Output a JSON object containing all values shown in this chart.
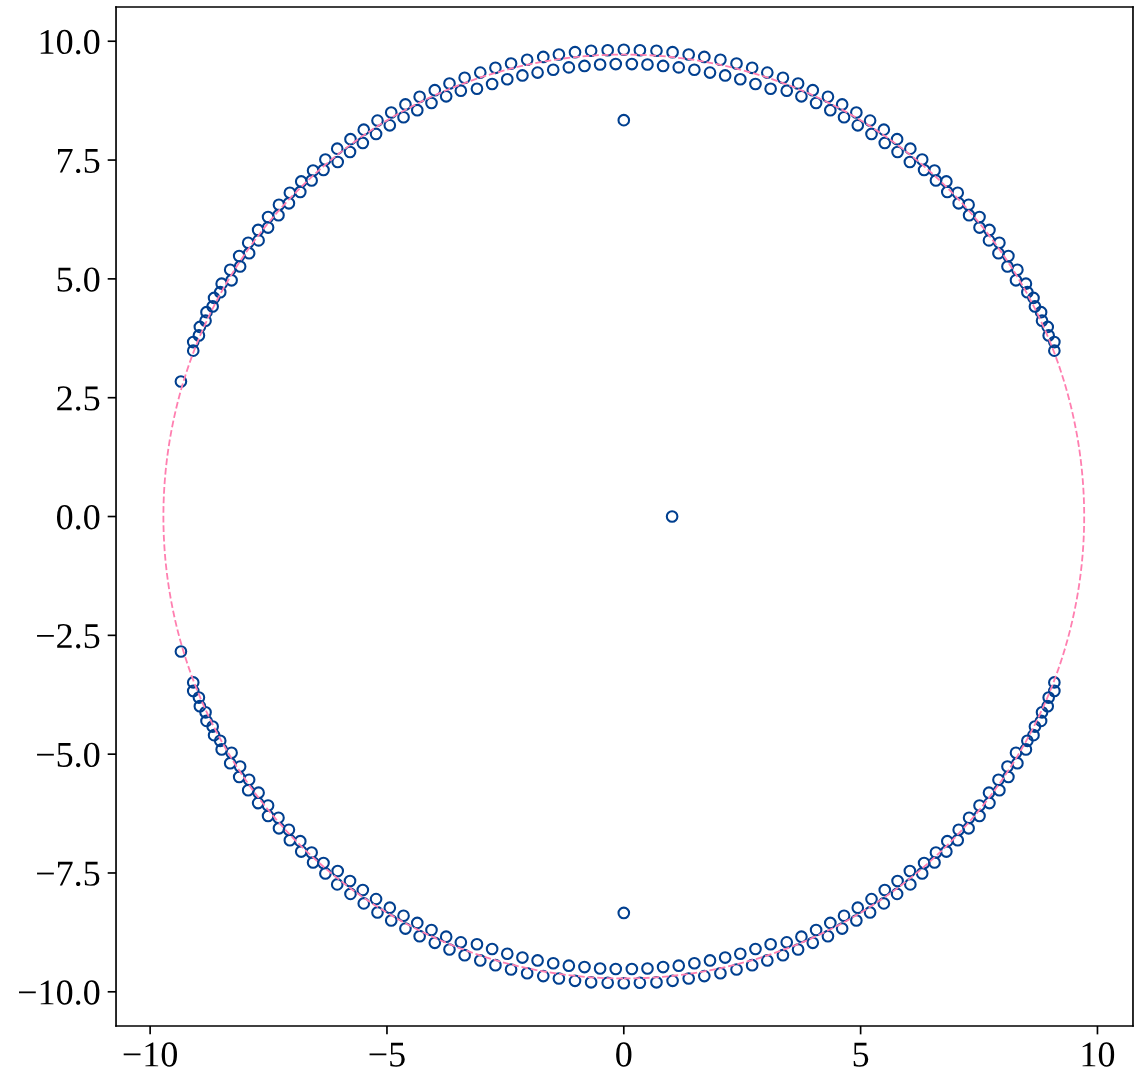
{
  "chart_data": {
    "type": "scatter",
    "series": [
      {
        "color": "#003f8f",
        "marker": "circle",
        "x": [
          9.09,
          9.09,
          8.97,
          8.95,
          8.83,
          8.81,
          8.68,
          8.65,
          8.52,
          8.49,
          8.28,
          8.31,
          8.1,
          8.12,
          7.91,
          7.93,
          7.71,
          7.72,
          7.51,
          7.51,
          7.29,
          7.28,
          7.07,
          7.05,
          6.83,
          6.81,
          6.59,
          6.56,
          6.34,
          6.3,
          6.04,
          6.05,
          5.78,
          5.77,
          5.51,
          5.49,
          5.23,
          5.2,
          4.94,
          4.91,
          4.65,
          4.61,
          4.36,
          4.31,
          4.06,
          3.99,
          3.75,
          3.68,
          3.44,
          3.36,
          3.1,
          3.03,
          2.78,
          2.71,
          2.46,
          2.38,
          2.14,
          2.04,
          1.82,
          1.7,
          1.49,
          1.37,
          1.16,
          1.03,
          0.83,
          0.69,
          0.5,
          0.34,
          0.17,
          0,
          -0.17,
          -0.34,
          -0.5,
          -0.69,
          -0.83,
          -1.03,
          -1.16,
          -1.37,
          -1.49,
          -1.7,
          -1.82,
          -2.04,
          -2.14,
          -2.38,
          -2.46,
          -2.71,
          -2.78,
          -3.03,
          -3.1,
          -3.36,
          -3.44,
          -3.68,
          -3.75,
          -3.99,
          -4.06,
          -4.31,
          -4.36,
          -4.61,
          -4.65,
          -4.91,
          -4.94,
          -5.2,
          -5.23,
          -5.49,
          -5.51,
          -5.77,
          -5.78,
          -6.05,
          -6.04,
          -6.3,
          -6.34,
          -6.56,
          -6.59,
          -6.81,
          -6.83,
          -7.05,
          -7.07,
          -7.28,
          -7.29,
          -7.51,
          -7.51,
          -7.72,
          -7.71,
          -7.93,
          -7.91,
          -8.12,
          -8.1,
          -8.31,
          -8.28,
          -8.49,
          -8.52,
          -8.65,
          -8.68,
          -8.81,
          -8.83,
          -8.95,
          -8.97,
          -9.09,
          -9.09,
          9.09,
          9.09,
          8.97,
          8.95,
          8.83,
          8.81,
          8.68,
          8.65,
          8.52,
          8.49,
          8.28,
          8.31,
          8.1,
          8.12,
          7.91,
          7.93,
          7.71,
          7.72,
          7.51,
          7.51,
          7.29,
          7.28,
          7.07,
          7.05,
          6.83,
          6.81,
          6.59,
          6.56,
          6.34,
          6.3,
          6.04,
          6.05,
          5.78,
          5.77,
          5.51,
          5.49,
          5.23,
          5.2,
          4.94,
          4.91,
          4.65,
          4.61,
          4.36,
          4.31,
          4.06,
          3.99,
          3.75,
          3.68,
          3.44,
          3.36,
          3.1,
          3.03,
          2.78,
          2.71,
          2.46,
          2.38,
          2.14,
          2.04,
          1.82,
          1.7,
          1.49,
          1.37,
          1.16,
          1.03,
          0.83,
          0.69,
          0.5,
          0.34,
          0.17,
          0,
          -0.17,
          -0.34,
          -0.5,
          -0.69,
          -0.83,
          -1.03,
          -1.16,
          -1.37,
          -1.49,
          -1.7,
          -1.82,
          -2.04,
          -2.14,
          -2.38,
          -2.46,
          -2.71,
          -2.78,
          -3.03,
          -3.1,
          -3.36,
          -3.44,
          -3.68,
          -3.75,
          -3.99,
          -4.06,
          -4.31,
          -4.36,
          -4.61,
          -4.65,
          -4.91,
          -4.94,
          -5.2,
          -5.23,
          -5.49,
          -5.51,
          -5.77,
          -5.78,
          -6.05,
          -6.04,
          -6.3,
          -6.34,
          -6.56,
          -6.59,
          -6.81,
          -6.83,
          -7.05,
          -7.07,
          -7.28,
          -7.29,
          -7.51,
          -7.51,
          -7.72,
          -7.71,
          -7.93,
          -7.91,
          -8.12,
          -8.1,
          -8.31,
          -8.28,
          -8.49,
          -8.52,
          -8.65,
          -8.68,
          -8.81,
          -8.83,
          -8.95,
          -8.97,
          -9.09,
          -9.09,
          0,
          1.02,
          0,
          -9.35,
          -9.35
        ],
        "values": [
          3.49,
          3.67,
          3.81,
          3.99,
          4.12,
          4.3,
          4.42,
          4.6,
          4.72,
          4.9,
          4.97,
          5.19,
          5.26,
          5.48,
          5.54,
          5.76,
          5.81,
          6.03,
          6.08,
          6.3,
          6.34,
          6.56,
          6.59,
          6.81,
          6.83,
          7.05,
          7.07,
          7.28,
          7.29,
          7.51,
          7.46,
          7.74,
          7.67,
          7.94,
          7.86,
          8.14,
          8.05,
          8.33,
          8.23,
          8.5,
          8.4,
          8.67,
          8.55,
          8.83,
          8.7,
          8.97,
          8.84,
          9.11,
          8.96,
          9.23,
          9.0,
          9.34,
          9.1,
          9.44,
          9.2,
          9.53,
          9.28,
          9.61,
          9.34,
          9.67,
          9.4,
          9.72,
          9.45,
          9.77,
          9.48,
          9.8,
          9.51,
          9.81,
          9.52,
          9.82,
          9.52,
          9.81,
          9.51,
          9.8,
          9.48,
          9.77,
          9.45,
          9.72,
          9.4,
          9.67,
          9.34,
          9.61,
          9.28,
          9.53,
          9.2,
          9.44,
          9.1,
          9.34,
          9.0,
          9.23,
          8.96,
          9.11,
          8.84,
          8.97,
          8.7,
          8.83,
          8.55,
          8.67,
          8.4,
          8.5,
          8.23,
          8.33,
          8.05,
          8.14,
          7.86,
          7.94,
          7.67,
          7.74,
          7.46,
          7.51,
          7.29,
          7.28,
          7.07,
          7.05,
          6.83,
          6.81,
          6.59,
          6.56,
          6.34,
          6.3,
          6.08,
          6.03,
          5.81,
          5.76,
          5.54,
          5.48,
          5.26,
          5.19,
          4.97,
          4.9,
          4.72,
          4.6,
          4.42,
          4.3,
          4.12,
          3.99,
          3.81,
          3.67,
          3.49,
          -3.49,
          -3.67,
          -3.81,
          -3.99,
          -4.12,
          -4.3,
          -4.42,
          -4.6,
          -4.72,
          -4.9,
          -4.97,
          -5.19,
          -5.26,
          -5.48,
          -5.54,
          -5.76,
          -5.81,
          -6.03,
          -6.08,
          -6.3,
          -6.34,
          -6.56,
          -6.59,
          -6.81,
          -6.83,
          -7.05,
          -7.07,
          -7.28,
          -7.29,
          -7.51,
          -7.46,
          -7.74,
          -7.67,
          -7.94,
          -7.86,
          -8.14,
          -8.05,
          -8.33,
          -8.23,
          -8.5,
          -8.4,
          -8.67,
          -8.55,
          -8.83,
          -8.7,
          -8.97,
          -8.84,
          -9.11,
          -8.96,
          -9.23,
          -9.0,
          -9.34,
          -9.1,
          -9.44,
          -9.2,
          -9.53,
          -9.28,
          -9.61,
          -9.34,
          -9.67,
          -9.4,
          -9.72,
          -9.45,
          -9.77,
          -9.48,
          -9.8,
          -9.51,
          -9.81,
          -9.52,
          -9.82,
          -9.52,
          -9.81,
          -9.51,
          -9.8,
          -9.48,
          -9.77,
          -9.45,
          -9.72,
          -9.4,
          -9.67,
          -9.34,
          -9.61,
          -9.28,
          -9.53,
          -9.2,
          -9.44,
          -9.1,
          -9.34,
          -9.0,
          -9.23,
          -8.96,
          -9.11,
          -8.84,
          -8.97,
          -8.7,
          -8.83,
          -8.55,
          -8.67,
          -8.4,
          -8.5,
          -8.23,
          -8.33,
          -8.05,
          -8.14,
          -7.86,
          -7.94,
          -7.67,
          -7.74,
          -7.46,
          -7.51,
          -7.29,
          -7.28,
          -7.07,
          -7.05,
          -6.83,
          -6.81,
          -6.59,
          -6.56,
          -6.34,
          -6.3,
          -6.08,
          -6.03,
          -5.81,
          -5.76,
          -5.54,
          -5.48,
          -5.26,
          -5.19,
          -4.97,
          -4.9,
          -4.72,
          -4.6,
          -4.42,
          -4.3,
          -4.12,
          -3.99,
          -3.81,
          -3.67,
          -3.49,
          8.34,
          0,
          -8.34,
          2.84,
          -2.84
        ]
      }
    ],
    "xlim": [
      -10.72,
      10.75
    ],
    "ylim": [
      -10.72,
      10.72
    ],
    "xticks": [
      {
        "value": -10,
        "label": "−10"
      },
      {
        "value": -5,
        "label": "−5"
      },
      0,
      5,
      10
    ],
    "yticks": [
      {
        "value": -10,
        "label": "−10.0"
      },
      {
        "value": -7.5,
        "label": "−7.5"
      },
      {
        "value": -5,
        "label": "−5.0"
      },
      {
        "value": -2.5,
        "label": "−2.5"
      },
      {
        "value": 0,
        "label": "0.0"
      },
      {
        "value": 2.5,
        "label": "2.5"
      },
      {
        "value": 5,
        "label": "5.0"
      },
      {
        "value": 7.5,
        "label": "7.5"
      },
      {
        "value": 10,
        "label": "10.0"
      }
    ]
  }
}
